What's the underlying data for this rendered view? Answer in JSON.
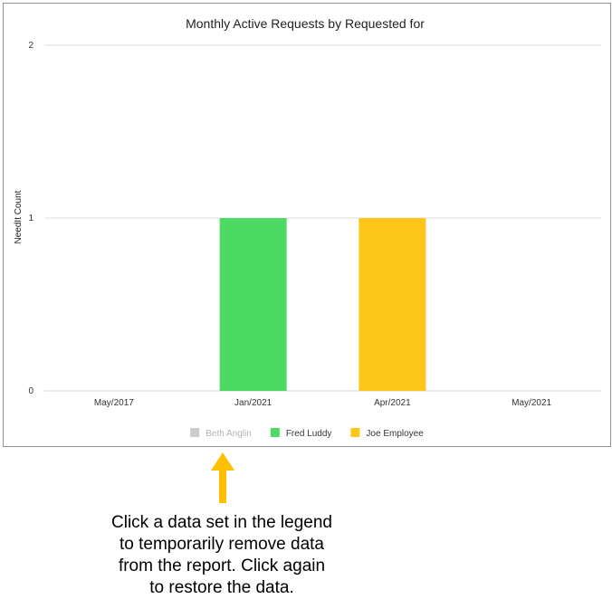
{
  "chart_data": {
    "type": "bar",
    "title": "Monthly Active Requests by Requested for",
    "ylabel": "NeedIt Count",
    "xlabel": "",
    "ylim": [
      0,
      2
    ],
    "yticks": [
      "0",
      "1",
      "2"
    ],
    "categories": [
      "May/2017",
      "Jan/2021",
      "Apr/2021",
      "May/2021"
    ],
    "series": [
      {
        "name": "Beth Anglin",
        "color": "#cccccc",
        "hidden": true,
        "values": [
          0,
          0,
          0,
          0
        ]
      },
      {
        "name": "Fred Luddy",
        "color": "#4cd964",
        "hidden": false,
        "values": [
          0,
          1,
          0,
          0
        ]
      },
      {
        "name": "Joe Employee",
        "color": "#ffc61a",
        "hidden": false,
        "values": [
          0,
          0,
          1,
          0
        ]
      }
    ],
    "grid": true,
    "legend": "bottom"
  },
  "annotation": {
    "lines": [
      "Click a data set in the legend",
      "to temporarily remove data",
      "from the report. Click again",
      "to restore the data."
    ],
    "arrow_color": "#ffc000"
  }
}
